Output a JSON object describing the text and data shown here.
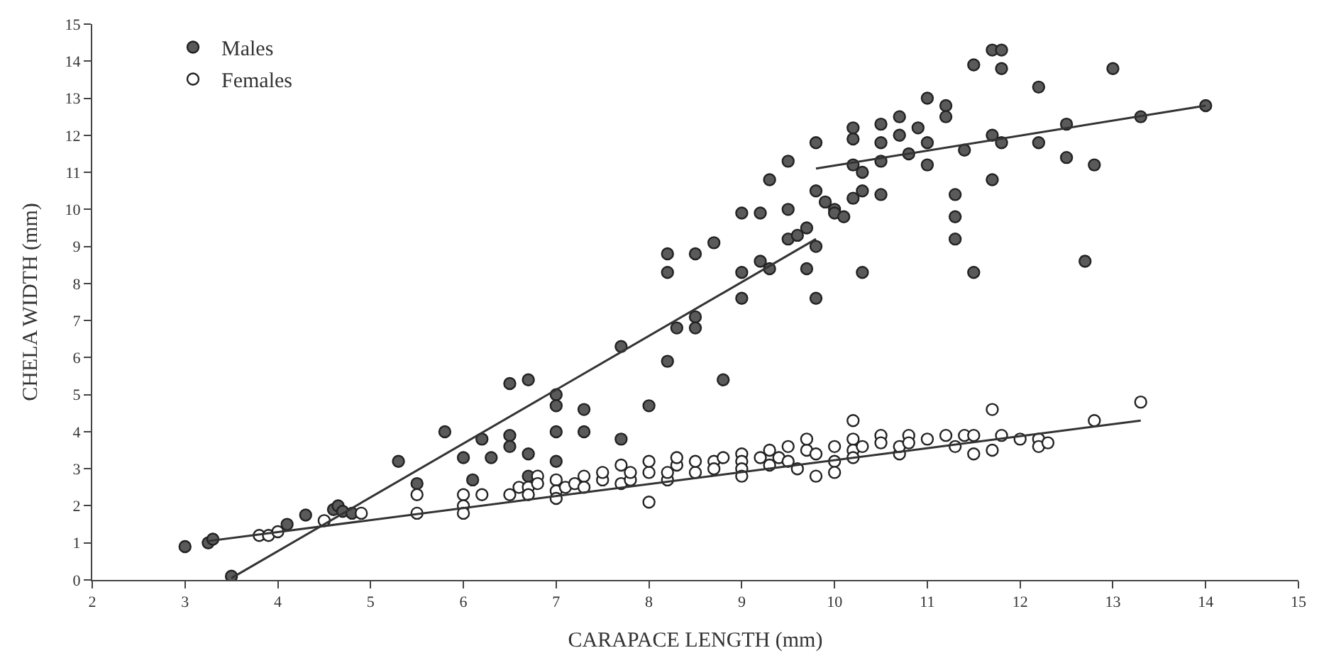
{
  "chart_data": {
    "type": "scatter",
    "xlabel": "CARAPACE LENGTH (mm)",
    "ylabel": "CHELA WIDTH (mm)",
    "xlim": [
      2,
      15
    ],
    "xticks": [
      2,
      3,
      4,
      5,
      6,
      7,
      8,
      9,
      10,
      11,
      12,
      13,
      14,
      15
    ],
    "ylim": [
      0,
      15
    ],
    "yticks": [
      0,
      1,
      2,
      3,
      4,
      5,
      6,
      7,
      8,
      9,
      10,
      11,
      12,
      13,
      14,
      15
    ],
    "legend": "top left",
    "series": [
      {
        "name": "Males",
        "color": "#5a5a5a",
        "marker": "circle",
        "x": [
          3.0,
          3.25,
          3.3,
          3.5,
          4.1,
          4.3,
          4.6,
          4.65,
          4.7,
          4.8,
          5.3,
          5.5,
          5.8,
          6.0,
          6.1,
          6.2,
          6.3,
          6.5,
          6.5,
          6.5,
          6.7,
          6.7,
          6.7,
          7.0,
          7.0,
          7.0,
          7.0,
          7.3,
          7.3,
          7.7,
          7.7,
          8.0,
          8.2,
          8.2,
          8.2,
          8.3,
          8.5,
          8.5,
          8.5,
          8.7,
          8.8,
          9.0,
          9.0,
          9.0,
          9.2,
          9.2,
          9.3,
          9.3,
          9.5,
          9.5,
          9.5,
          9.6,
          9.7,
          9.7,
          9.8,
          9.8,
          9.8,
          9.8,
          9.9,
          10.0,
          10.0,
          10.1,
          10.2,
          10.2,
          10.2,
          10.2,
          10.3,
          10.3,
          10.3,
          10.5,
          10.5,
          10.5,
          10.5,
          10.7,
          10.7,
          10.8,
          10.9,
          11.0,
          11.0,
          11.0,
          11.2,
          11.2,
          11.3,
          11.3,
          11.3,
          11.4,
          11.5,
          11.5,
          11.7,
          11.7,
          11.7,
          11.8,
          11.8,
          11.8,
          12.2,
          12.2,
          12.5,
          12.5,
          12.7,
          12.8,
          13.0,
          13.3,
          14.0
        ],
        "values": [
          0.9,
          1.0,
          1.1,
          0.1,
          1.5,
          1.75,
          1.9,
          2.0,
          1.85,
          1.8,
          3.2,
          2.6,
          4.0,
          3.3,
          2.7,
          3.8,
          3.3,
          3.9,
          5.3,
          3.6,
          5.4,
          3.4,
          2.8,
          5.0,
          4.7,
          4.0,
          3.2,
          4.6,
          4.0,
          6.3,
          3.8,
          4.7,
          8.8,
          8.3,
          5.9,
          6.8,
          7.1,
          6.8,
          8.8,
          9.1,
          5.4,
          9.9,
          8.3,
          7.6,
          8.6,
          9.9,
          8.4,
          10.8,
          11.3,
          10.0,
          9.2,
          9.3,
          9.5,
          8.4,
          11.8,
          10.5,
          9.0,
          7.6,
          10.2,
          10.0,
          9.9,
          9.8,
          12.2,
          11.9,
          11.2,
          10.3,
          11.0,
          10.5,
          8.3,
          12.3,
          11.8,
          11.3,
          10.4,
          12.5,
          12.0,
          11.5,
          12.2,
          13.0,
          11.8,
          11.2,
          12.8,
          12.5,
          10.4,
          9.8,
          9.2,
          11.6,
          13.9,
          8.3,
          14.3,
          12.0,
          10.8,
          14.3,
          13.8,
          11.8,
          13.3,
          11.8,
          12.3,
          11.4,
          8.6,
          11.2,
          13.8,
          12.5,
          12.8
        ]
      },
      {
        "name": "Females",
        "color": "#ffffff",
        "marker": "circle",
        "x": [
          3.8,
          3.9,
          4.0,
          4.5,
          4.9,
          5.5,
          5.5,
          6.0,
          6.0,
          6.0,
          6.2,
          6.5,
          6.6,
          6.7,
          6.7,
          6.8,
          6.8,
          7.0,
          7.0,
          7.0,
          7.1,
          7.2,
          7.3,
          7.3,
          7.5,
          7.5,
          7.7,
          7.7,
          7.8,
          7.8,
          8.0,
          8.0,
          8.0,
          8.2,
          8.2,
          8.3,
          8.3,
          8.5,
          8.5,
          8.7,
          8.7,
          8.8,
          9.0,
          9.0,
          9.0,
          9.0,
          9.2,
          9.3,
          9.3,
          9.4,
          9.5,
          9.5,
          9.6,
          9.7,
          9.7,
          9.8,
          9.8,
          10.0,
          10.0,
          10.0,
          10.2,
          10.2,
          10.2,
          10.2,
          10.3,
          10.5,
          10.5,
          10.7,
          10.7,
          10.8,
          10.8,
          11.0,
          11.2,
          11.3,
          11.4,
          11.5,
          11.5,
          11.7,
          11.7,
          11.8,
          12.0,
          12.2,
          12.2,
          12.3,
          12.8,
          13.3
        ],
        "values": [
          1.2,
          1.2,
          1.3,
          1.6,
          1.8,
          1.8,
          2.3,
          2.3,
          2.0,
          1.8,
          2.3,
          2.3,
          2.5,
          2.5,
          2.3,
          2.8,
          2.6,
          2.7,
          2.4,
          2.2,
          2.5,
          2.6,
          2.8,
          2.5,
          2.7,
          2.9,
          2.6,
          3.1,
          2.7,
          2.9,
          2.1,
          2.9,
          3.2,
          2.7,
          2.9,
          3.1,
          3.3,
          2.9,
          3.2,
          3.2,
          3.0,
          3.3,
          3.4,
          3.2,
          3.0,
          2.8,
          3.3,
          3.1,
          3.5,
          3.3,
          3.6,
          3.2,
          3.0,
          3.5,
          3.8,
          2.8,
          3.4,
          3.2,
          3.6,
          2.9,
          4.3,
          3.8,
          3.5,
          3.3,
          3.6,
          3.9,
          3.7,
          3.4,
          3.6,
          3.9,
          3.7,
          3.8,
          3.9,
          3.6,
          3.9,
          3.4,
          3.9,
          4.6,
          3.5,
          3.9,
          3.8,
          3.8,
          3.6,
          3.7,
          4.3,
          4.8
        ]
      },
      {
        "type": "line",
        "color": "#333333",
        "x": [
          3.5,
          9.8
        ],
        "values": [
          0.05,
          9.2
        ]
      },
      {
        "type": "line",
        "color": "#333333",
        "x": [
          9.8,
          14.0
        ],
        "values": [
          11.1,
          12.8
        ]
      },
      {
        "type": "line",
        "color": "#333333",
        "x": [
          3.25,
          13.3
        ],
        "values": [
          1.05,
          4.3
        ]
      }
    ]
  }
}
